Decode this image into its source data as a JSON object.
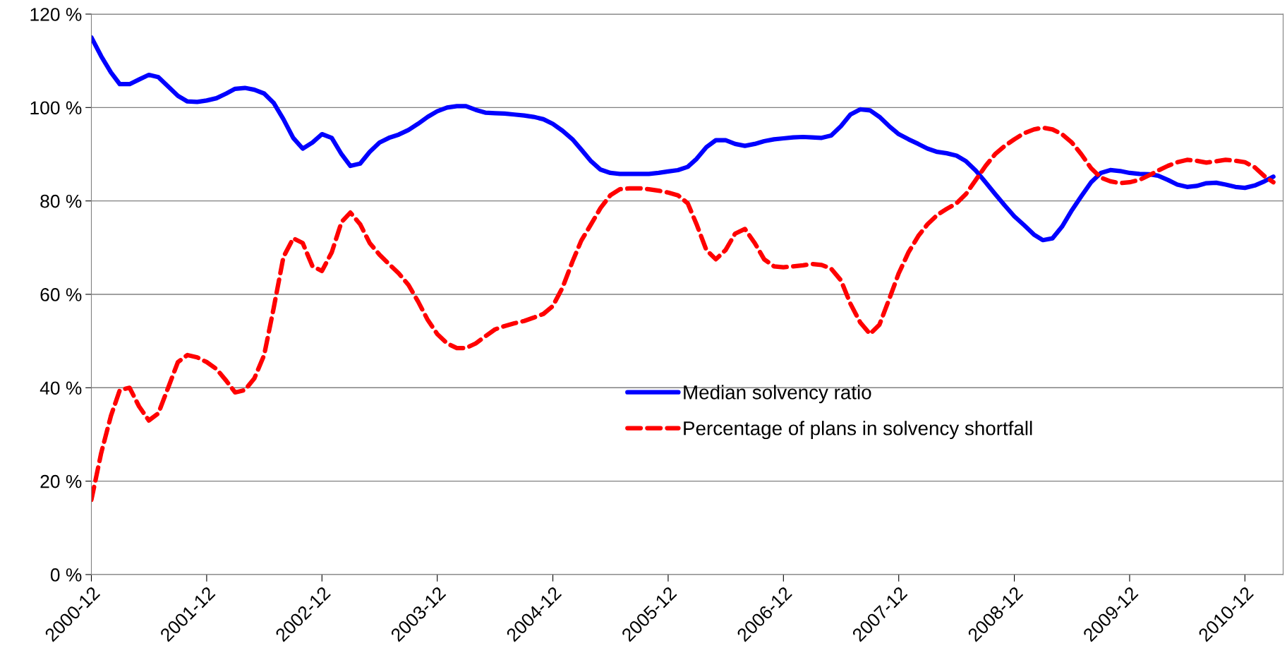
{
  "chart_data": {
    "type": "line",
    "x": [
      "2000-12",
      "2001-01",
      "2001-02",
      "2001-03",
      "2001-04",
      "2001-05",
      "2001-06",
      "2001-07",
      "2001-08",
      "2001-09",
      "2001-10",
      "2001-11",
      "2001-12",
      "2002-01",
      "2002-02",
      "2002-03",
      "2002-04",
      "2002-05",
      "2002-06",
      "2002-07",
      "2002-08",
      "2002-09",
      "2002-10",
      "2002-11",
      "2002-12",
      "2003-01",
      "2003-02",
      "2003-03",
      "2003-04",
      "2003-05",
      "2003-06",
      "2003-07",
      "2003-08",
      "2003-09",
      "2003-10",
      "2003-11",
      "2003-12",
      "2004-01",
      "2004-02",
      "2004-03",
      "2004-04",
      "2004-05",
      "2004-06",
      "2004-07",
      "2004-08",
      "2004-09",
      "2004-10",
      "2004-11",
      "2004-12",
      "2005-01",
      "2005-02",
      "2005-03",
      "2005-04",
      "2005-05",
      "2005-06",
      "2005-07",
      "2005-08",
      "2005-09",
      "2005-10",
      "2005-11",
      "2005-12",
      "2006-01",
      "2006-02",
      "2006-03",
      "2006-04",
      "2006-05",
      "2006-06",
      "2006-07",
      "2006-08",
      "2006-09",
      "2006-10",
      "2006-11",
      "2006-12",
      "2007-01",
      "2007-02",
      "2007-03",
      "2007-04",
      "2007-05",
      "2007-06",
      "2007-07",
      "2007-08",
      "2007-09",
      "2007-10",
      "2007-11",
      "2007-12",
      "2008-01",
      "2008-02",
      "2008-03",
      "2008-04",
      "2008-05",
      "2008-06",
      "2008-07",
      "2008-08",
      "2008-09",
      "2008-10",
      "2008-11",
      "2008-12",
      "2009-01",
      "2009-02",
      "2009-03",
      "2009-04",
      "2009-05",
      "2009-06",
      "2009-07",
      "2009-08",
      "2009-09",
      "2009-10",
      "2009-11",
      "2009-12",
      "2010-01",
      "2010-02",
      "2010-03",
      "2010-04",
      "2010-05",
      "2010-06",
      "2010-07",
      "2010-08",
      "2010-09",
      "2010-10",
      "2010-11",
      "2010-12",
      "2011-01",
      "2011-02",
      "2011-03"
    ],
    "series": [
      {
        "name": "Median solvency ratio",
        "color": "#0000ff",
        "line_style": "solid",
        "values": [
          115,
          111,
          107.5,
          105,
          105,
          106,
          107,
          106.5,
          104.5,
          102.5,
          101.3,
          101.2,
          101.5,
          102,
          103,
          104,
          104.2,
          103.8,
          103,
          101,
          97.5,
          93.5,
          91.2,
          92.5,
          94.3,
          93.5,
          90,
          87.5,
          88,
          90.5,
          92.5,
          93.5,
          94.2,
          95.2,
          96.5,
          98,
          99.2,
          100,
          100.3,
          100.3,
          99.5,
          98.9,
          98.8,
          98.7,
          98.5,
          98.3,
          98,
          97.5,
          96.5,
          95,
          93.2,
          91,
          88.5,
          86.7,
          86,
          85.8,
          85.8,
          85.8,
          85.8,
          86,
          86.3,
          86.6,
          87.3,
          89,
          91.5,
          93,
          93,
          92.2,
          91.8,
          92.2,
          92.8,
          93.2,
          93.4,
          93.6,
          93.7,
          93.6,
          93.5,
          94,
          96,
          98.5,
          99.6,
          99.4,
          98,
          96,
          94.3,
          93.2,
          92.2,
          91.2,
          90.5,
          90.2,
          89.7,
          88.5,
          86.5,
          84,
          81.5,
          79,
          76.7,
          74.8,
          72.8,
          71.6,
          72,
          74.5,
          78,
          81,
          84,
          86,
          86.6,
          86.4,
          86,
          85.8,
          85.7,
          85.4,
          84.5,
          83.5,
          83,
          83.2,
          83.8,
          83.9,
          83.5,
          83,
          82.8,
          83.3,
          84.2,
          85.2
        ]
      },
      {
        "name": "Percentage of plans in solvency shortfall",
        "color": "#ff0000",
        "line_style": "dashed",
        "values": [
          16,
          26,
          34,
          39.5,
          40,
          36,
          33,
          34.5,
          40,
          45.5,
          47,
          46.5,
          45.5,
          44,
          41.5,
          39,
          39.5,
          42,
          47,
          57,
          68,
          72,
          71,
          66,
          65,
          69,
          75.5,
          77.5,
          75,
          71,
          68.5,
          66.5,
          64.5,
          62,
          58.5,
          54.5,
          51.5,
          49.5,
          48.5,
          48.5,
          49.5,
          51,
          52.5,
          53.2,
          53.8,
          54.3,
          55,
          55.8,
          57.5,
          61.5,
          67,
          71.5,
          75,
          78.5,
          81.2,
          82.5,
          82.7,
          82.7,
          82.5,
          82.2,
          81.8,
          81.2,
          79.5,
          75,
          69.5,
          67.5,
          69.5,
          73,
          74,
          71,
          67.5,
          66,
          65.8,
          66,
          66.2,
          66.5,
          66.3,
          65.5,
          63,
          58,
          54,
          51.5,
          53.5,
          59,
          64.5,
          69,
          72.5,
          75,
          77,
          78.3,
          79.5,
          81.5,
          84.5,
          87.5,
          90,
          91.8,
          93.2,
          94.5,
          95.3,
          95.7,
          95.3,
          94.3,
          92.5,
          90,
          87,
          85,
          84.2,
          83.8,
          84,
          84.5,
          85.5,
          86.5,
          87.5,
          88.3,
          88.8,
          88.6,
          88.2,
          88.5,
          88.8,
          88.6,
          88.3,
          87.2,
          85.3,
          84
        ]
      }
    ],
    "xlim": [
      "2000-12",
      "2011-04"
    ],
    "xticks": [
      {
        "value": "2000-12",
        "label": "2000-12"
      },
      {
        "value": "2001-12",
        "label": "2001-12"
      },
      {
        "value": "2002-12",
        "label": "2002-12"
      },
      {
        "value": "2003-12",
        "label": "2003-12"
      },
      {
        "value": "2004-12",
        "label": "2004-12"
      },
      {
        "value": "2005-12",
        "label": "2005-12"
      },
      {
        "value": "2006-12",
        "label": "2006-12"
      },
      {
        "value": "2007-12",
        "label": "2007-12"
      },
      {
        "value": "2008-12",
        "label": "2008-12"
      },
      {
        "value": "2009-12",
        "label": "2009-12"
      },
      {
        "value": "2010-12",
        "label": "2010-12"
      }
    ],
    "ylim": [
      0,
      120
    ],
    "yticks": [
      {
        "value": 0,
        "label": "0 %"
      },
      {
        "value": 20,
        "label": "20 %"
      },
      {
        "value": 40,
        "label": "40 %"
      },
      {
        "value": 60,
        "label": "60 %"
      },
      {
        "value": 80,
        "label": "80 %"
      },
      {
        "value": 100,
        "label": "100 %"
      },
      {
        "value": 120,
        "label": "120 %"
      }
    ],
    "grid": "y",
    "legend": "center"
  }
}
